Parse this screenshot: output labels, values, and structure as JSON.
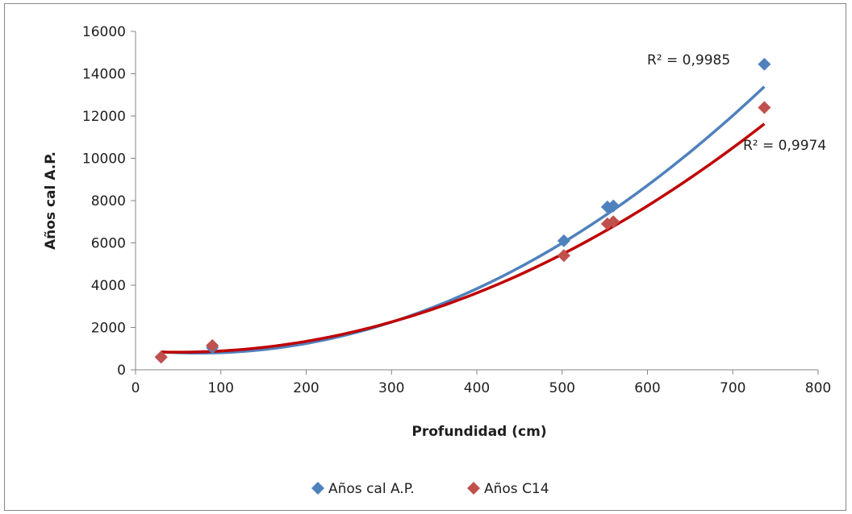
{
  "chart_data": {
    "type": "scatter",
    "xlabel": "Profundidad (cm)",
    "ylabel": "Años cal A.P.",
    "xlim": [
      0,
      800
    ],
    "ylim": [
      0,
      16000
    ],
    "x_ticks": [
      "0",
      "100",
      "200",
      "300",
      "400",
      "500",
      "600",
      "700",
      "800"
    ],
    "y_ticks": [
      "0",
      "2000",
      "4000",
      "6000",
      "8000",
      "10000",
      "12000",
      "14000",
      "16000"
    ],
    "grid": false,
    "legend_position": "bottom",
    "series": [
      {
        "name": "Años cal A.P.",
        "color": "#4f81bd",
        "trend_color": "#4f81bd",
        "marker": "diamond",
        "points": [
          [
            30,
            600
          ],
          [
            90,
            1050
          ],
          [
            502,
            6100
          ],
          [
            553,
            7700
          ],
          [
            560,
            7750
          ],
          [
            737,
            14450
          ]
        ],
        "trendline": {
          "type": "polynomial-2",
          "r2_label": "R² = 0,9985",
          "coefficients": [
            0.02866,
            -4.24,
            946
          ]
        }
      },
      {
        "name": "Años C14",
        "color": "#c0504d",
        "trend_color": "#c00000",
        "marker": "diamond",
        "points": [
          [
            30,
            600
          ],
          [
            90,
            1150
          ],
          [
            502,
            5400
          ],
          [
            553,
            6900
          ],
          [
            560,
            7000
          ],
          [
            737,
            12400
          ]
        ],
        "trendline": {
          "type": "polynomial-2",
          "r2_label": "R² = 0,9974",
          "coefficients": [
            0.02289,
            -2.3,
            890
          ]
        }
      }
    ]
  }
}
